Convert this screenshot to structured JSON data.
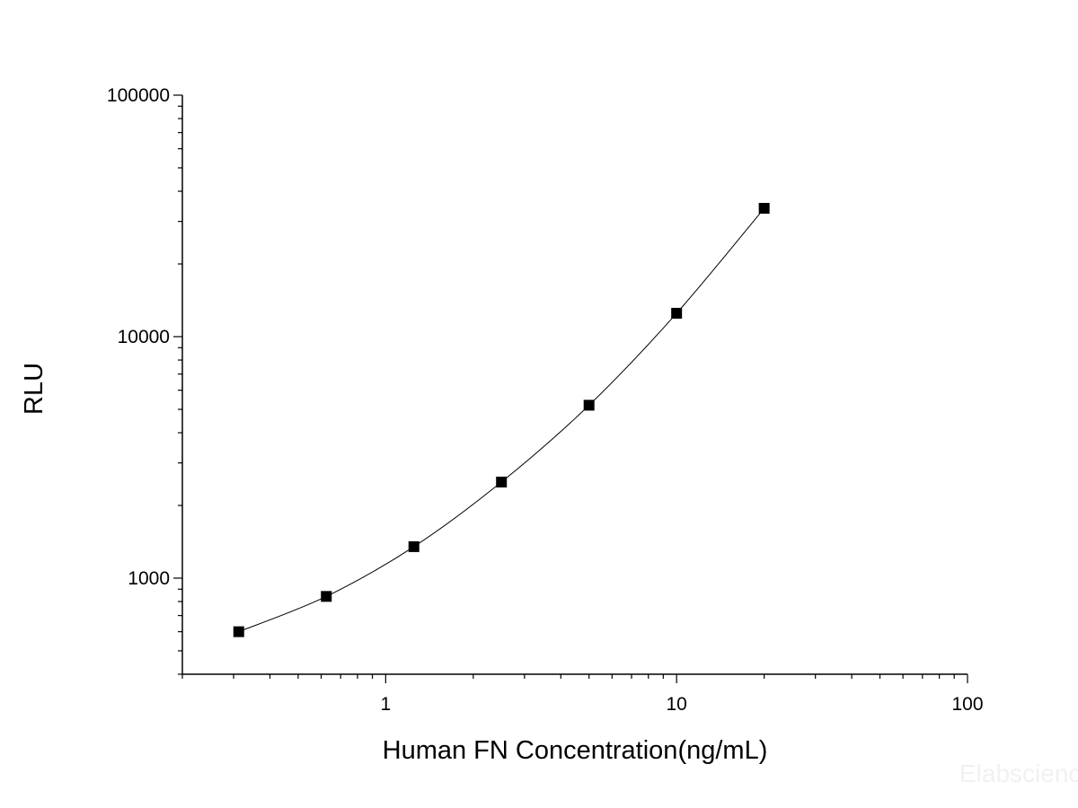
{
  "chart_data": {
    "type": "scatter",
    "title": "",
    "xlabel": "Human FN Concentration(ng/mL)",
    "ylabel": "RLU",
    "x_scale": "log",
    "y_scale": "log",
    "xlim": [
      0.2,
      100
    ],
    "ylim": [
      400,
      100000
    ],
    "x_tick_labels": [
      {
        "value": 1,
        "label": "1"
      },
      {
        "value": 10,
        "label": "10"
      },
      {
        "value": 100,
        "label": "100"
      }
    ],
    "y_tick_labels": [
      {
        "value": 1000,
        "label": "1000"
      },
      {
        "value": 10000,
        "label": "10000"
      },
      {
        "value": 100000,
        "label": "100000"
      }
    ],
    "grid": false,
    "legend": "none",
    "marker": "square",
    "fit_line": true,
    "series": [
      {
        "x": [
          0.3125,
          0.625,
          1.25,
          2.5,
          5,
          10,
          20
        ],
        "y": [
          600,
          840,
          1350,
          2500,
          5200,
          12500,
          34000
        ]
      }
    ],
    "watermark": "Elabscience"
  },
  "colors": {
    "axis": "#000000",
    "marker": "#000000",
    "line": "#000000",
    "watermark": "#f1f1f1"
  }
}
